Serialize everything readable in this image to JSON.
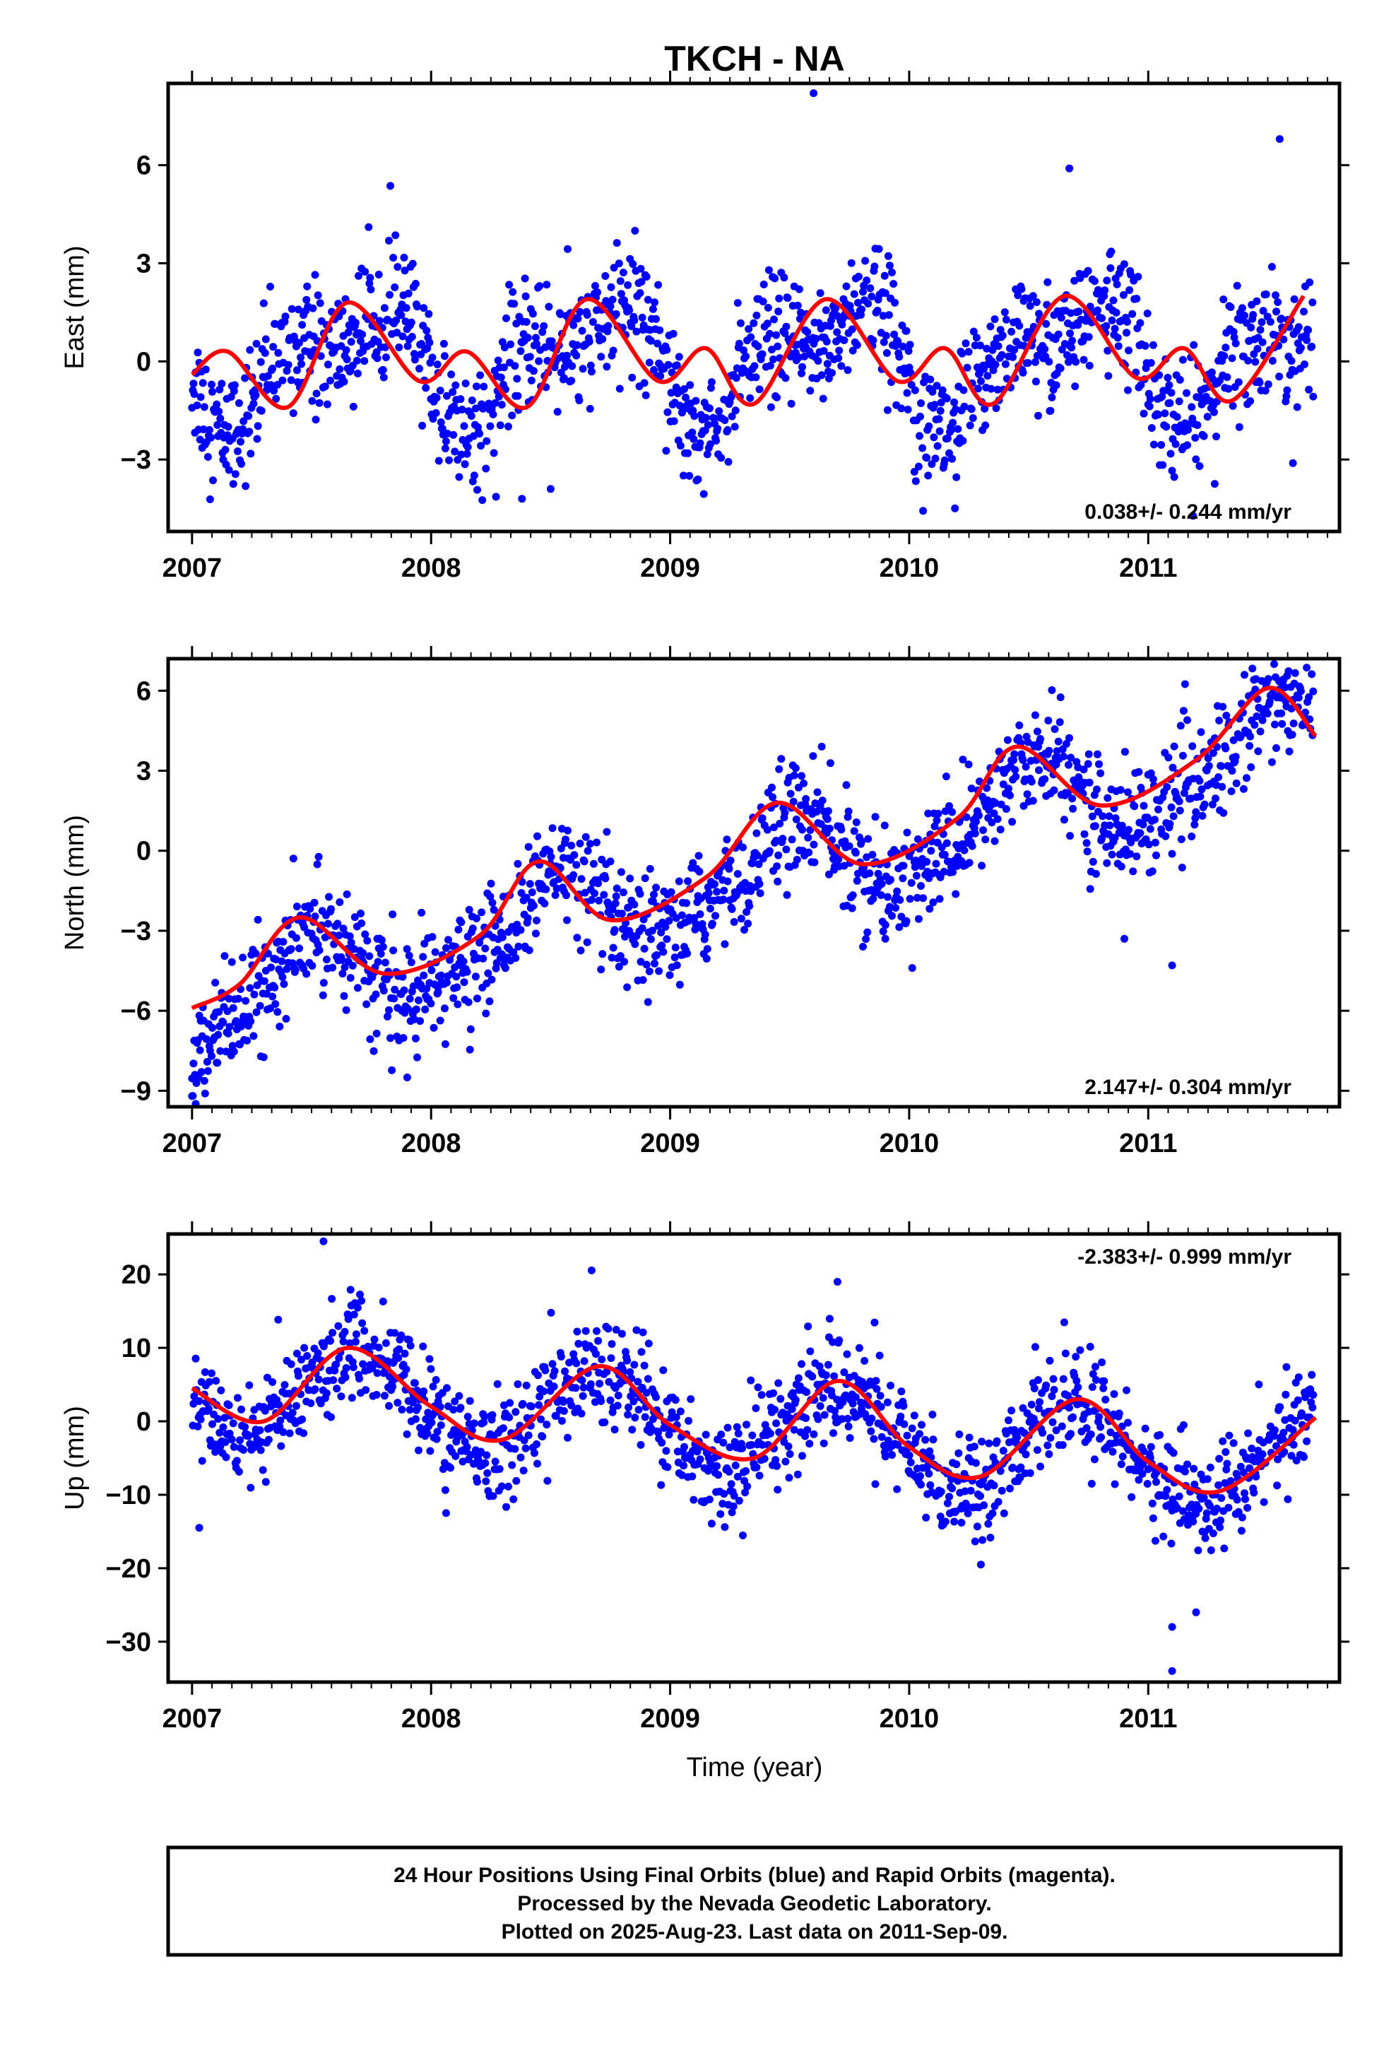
{
  "chart_data": {
    "type": "scatter",
    "title": "TKCH - NA",
    "xlabel": "Time (year)",
    "x_ticks": [
      "2007",
      "2008",
      "2009",
      "2010",
      "2011"
    ],
    "xlim": [
      2006.9,
      2011.8
    ],
    "colors": {
      "points": "#0000ff",
      "model": "#ff0000",
      "frame": "#000000"
    },
    "panels": [
      {
        "id": "east",
        "ylabel": "East (mm)",
        "ylim": [
          -5.2,
          8.5
        ],
        "yticks": [
          {
            "v": -3,
            "t": "−3"
          },
          {
            "v": 0,
            "t": "0"
          },
          {
            "v": 3,
            "t": "3"
          },
          {
            "v": 6,
            "t": "6"
          }
        ],
        "rate": "0.038+/- 0.244 mm/yr",
        "rate_position": "bottom-right",
        "series": [
          {
            "kind": "points",
            "approx": {
              "trend": 0.038,
              "annual_amp": 1.4,
              "annual_phase": 0.0,
              "semi_amp": 0.9,
              "semi_phase": -0.6,
              "scatter": 0.95
            },
            "outliers": [
              [
                2008.38,
                -4.2
              ],
              [
                2009.6,
                8.2
              ],
              [
                2010.67,
                5.9
              ],
              [
                2011.55,
                6.8
              ],
              [
                2008.5,
                -3.9
              ]
            ]
          },
          {
            "kind": "model",
            "name": "fit",
            "x": [
              2007.0,
              2007.15,
              2007.4,
              2007.65,
              2007.95,
              2008.15,
              2008.4,
              2008.65,
              2008.95,
              2009.15,
              2009.35,
              2009.65,
              2009.95,
              2010.15,
              2010.35,
              2010.65,
              2010.95,
              2011.15,
              2011.35,
              2011.65
            ],
            "y": [
              -0.4,
              0.3,
              -1.4,
              1.8,
              -0.6,
              0.3,
              -1.4,
              1.9,
              -0.6,
              0.4,
              -1.3,
              1.9,
              -0.6,
              0.4,
              -1.3,
              2.0,
              -0.5,
              0.4,
              -1.2,
              2.0
            ]
          }
        ]
      },
      {
        "id": "north",
        "ylabel": "North (mm)",
        "ylim": [
          -9.6,
          7.2
        ],
        "yticks": [
          {
            "v": -9,
            "t": "−9"
          },
          {
            "v": -6,
            "t": "−6"
          },
          {
            "v": -3,
            "t": "−3"
          },
          {
            "v": 0,
            "t": "0"
          },
          {
            "v": 3,
            "t": "3"
          },
          {
            "v": 6,
            "t": "6"
          }
        ],
        "rate": "2.147+/- 0.304 mm/yr",
        "rate_position": "bottom-right",
        "series": [
          {
            "kind": "points",
            "approx": {
              "trend": 2.147,
              "offset": -6.0,
              "annual_amp": 1.6,
              "annual_phase": 0.2,
              "semi_amp": 0.4,
              "semi_phase": 0.0,
              "scatter": 1.05
            },
            "outliers": [
              [
                2007.0,
                -9.2
              ],
              [
                2007.9,
                -8.5
              ],
              [
                2009.9,
                -3.3
              ],
              [
                2010.9,
                -3.3
              ],
              [
                2011.1,
                -4.3
              ]
            ]
          },
          {
            "kind": "model",
            "name": "fit",
            "x": [
              2007.0,
              2007.2,
              2007.45,
              2007.8,
              2008.2,
              2008.45,
              2008.75,
              2009.15,
              2009.45,
              2009.8,
              2010.2,
              2010.45,
              2010.8,
              2011.2,
              2011.5,
              2011.7
            ],
            "y": [
              -5.9,
              -5.0,
              -2.5,
              -4.6,
              -3.2,
              -0.4,
              -2.6,
              -1.0,
              1.8,
              -0.5,
              1.2,
              3.9,
              1.7,
              3.4,
              6.1,
              4.3
            ]
          }
        ]
      },
      {
        "id": "up",
        "ylabel": "Up (mm)",
        "ylim": [
          -35.5,
          25.5
        ],
        "yticks": [
          {
            "v": -30,
            "t": "−30"
          },
          {
            "v": -20,
            "t": "−20"
          },
          {
            "v": -10,
            "t": "−10"
          },
          {
            "v": 0,
            "t": "0"
          },
          {
            "v": 10,
            "t": "10"
          },
          {
            "v": 20,
            "t": "20"
          }
        ],
        "rate": "-2.383+/- 0.999 mm/yr",
        "rate_position": "top-right",
        "series": [
          {
            "kind": "points",
            "approx": {
              "trend": -2.383,
              "offset": 5.0,
              "annual_amp": 6.0,
              "annual_phase": 0.0,
              "semi_amp": 0.0,
              "semi_phase": 0.0,
              "scatter": 3.6
            },
            "outliers": [
              [
                2007.55,
                24.5
              ],
              [
                2009.7,
                19.0
              ],
              [
                2011.1,
                -34.0
              ],
              [
                2011.1,
                -28.0
              ],
              [
                2011.2,
                -26.0
              ],
              [
                2007.03,
                -14.5
              ],
              [
                2010.3,
                -19.5
              ]
            ]
          },
          {
            "kind": "model",
            "name": "fit",
            "x": [
              2007.0,
              2007.3,
              2007.65,
              2008.0,
              2008.3,
              2008.7,
              2009.0,
              2009.35,
              2009.7,
              2010.0,
              2010.3,
              2010.7,
              2011.0,
              2011.3,
              2011.7
            ],
            "y": [
              4.5,
              0.0,
              10.0,
              2.0,
              -2.5,
              7.5,
              -0.5,
              -5.0,
              5.5,
              -3.5,
              -7.5,
              3.0,
              -5.5,
              -9.5,
              0.5
            ]
          }
        ]
      }
    ]
  },
  "footer": {
    "line1": "24 Hour Positions Using Final Orbits (blue) and Rapid Orbits (magenta).",
    "line2": "Processed by the Nevada Geodetic Laboratory.",
    "line3": "Plotted on 2025-Aug-23. Last data on 2011-Sep-09."
  }
}
